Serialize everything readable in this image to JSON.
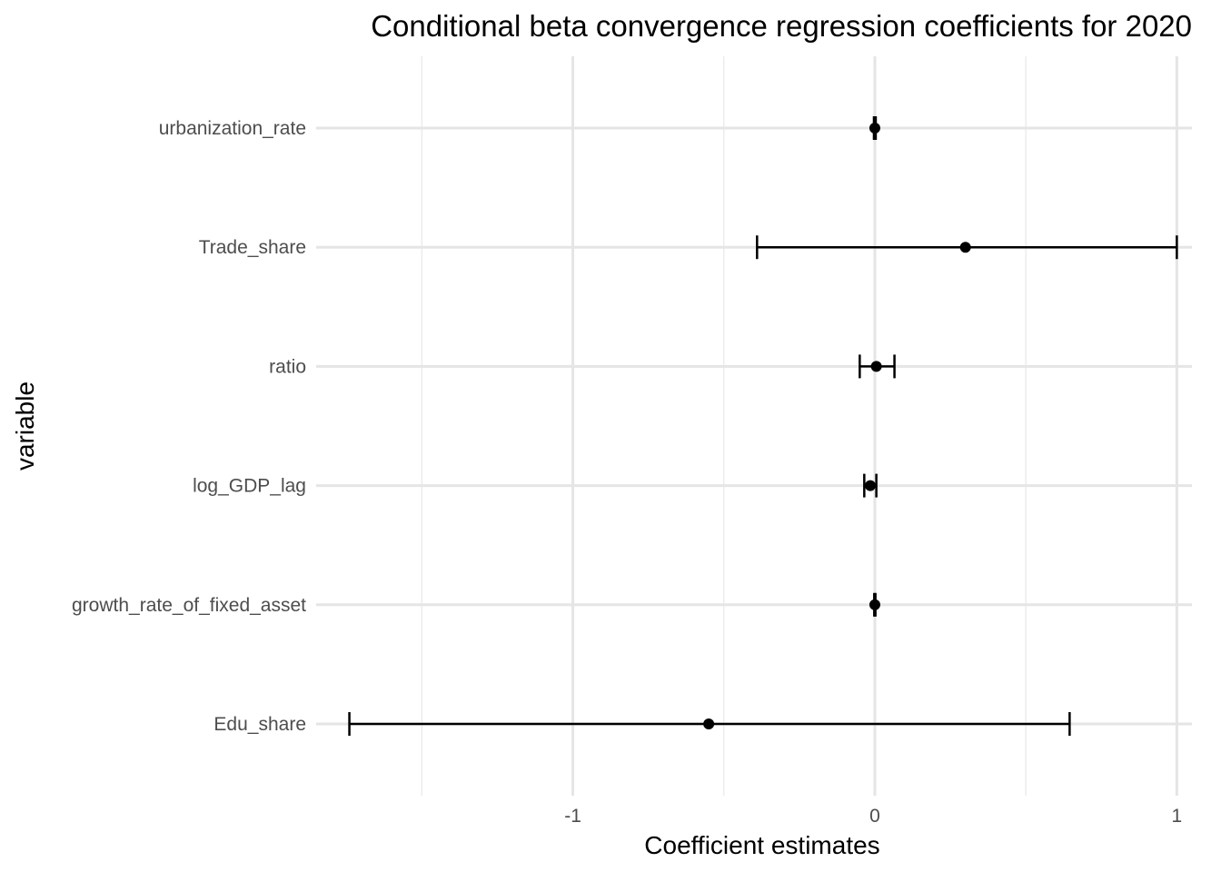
{
  "chart_data": {
    "type": "scatter",
    "subtype": "coefficient-errorbar",
    "title": "Conditional beta convergence regression coefficients for 2020",
    "xlabel": "Coefficient estimates",
    "ylabel": "variable",
    "xlim": [
      -1.85,
      1.05
    ],
    "x_major_ticks": [
      -1,
      0,
      1
    ],
    "x_tick_labels": [
      "-1",
      "0",
      "1"
    ],
    "x_minor_ticks": [
      -1.5,
      -0.5,
      0.5
    ],
    "categories": [
      "urbanization_rate",
      "Trade_share",
      "ratio",
      "log_GDP_lag",
      "growth_rate_of_fixed_asset",
      "Edu_share"
    ],
    "estimates": [
      0.0,
      0.3,
      0.005,
      -0.015,
      0.0,
      -0.55
    ],
    "lower": [
      -0.003,
      -0.39,
      -0.05,
      -0.035,
      -0.002,
      -1.74
    ],
    "upper": [
      0.003,
      1.0,
      0.065,
      0.005,
      0.002,
      0.645
    ],
    "grid": true,
    "legend": "none"
  }
}
